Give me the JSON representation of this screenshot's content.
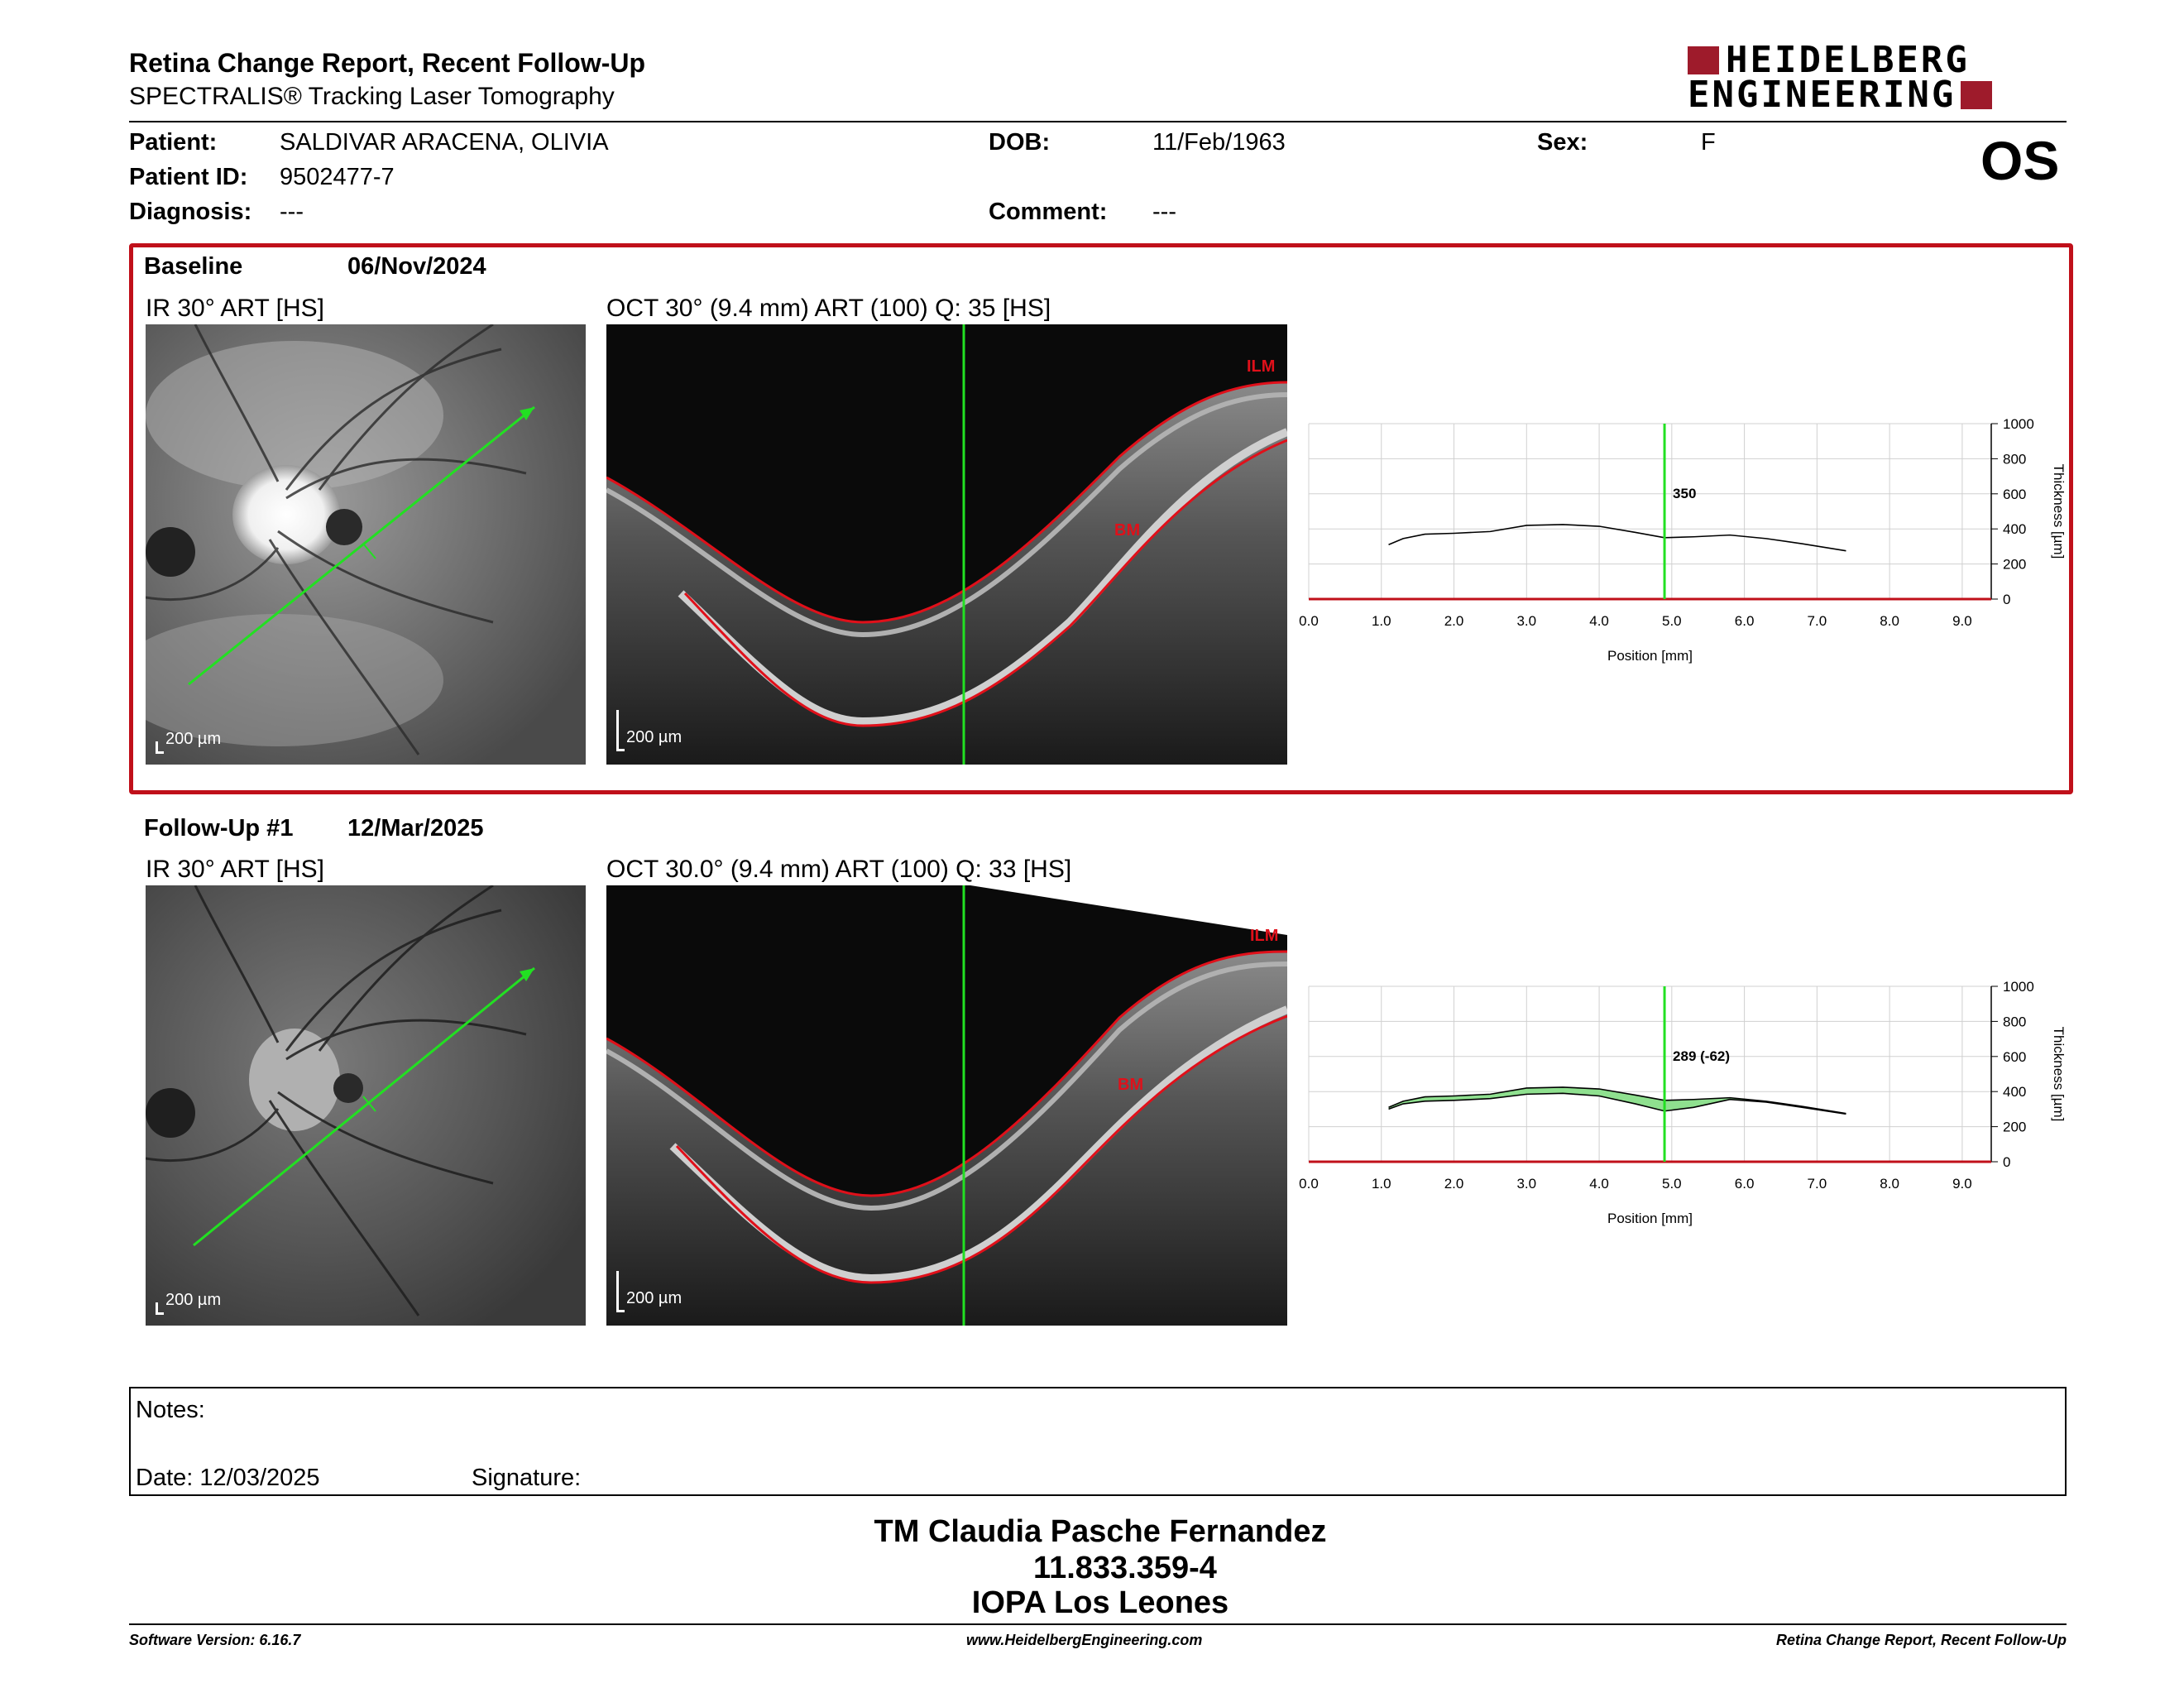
{
  "header": {
    "title": "Retina Change Report, Recent Follow-Up",
    "subtitle": "SPECTRALIS® Tracking Laser Tomography",
    "logo_line1": "HEIDELBERG",
    "logo_line2": "ENGINEERING",
    "brand_color": "#9e1b2b",
    "eye": "OS"
  },
  "patient": {
    "name_label": "Patient:",
    "name": "SALDIVAR ARACENA, OLIVIA",
    "id_label": "Patient ID:",
    "id": "9502477-7",
    "diagnosis_label": "Diagnosis:",
    "diagnosis": "---",
    "dob_label": "DOB:",
    "dob": "11/Feb/1963",
    "comment_label": "Comment:",
    "comment": "---",
    "sex_label": "Sex:",
    "sex": "F"
  },
  "baseline": {
    "label": "Baseline",
    "date": "06/Nov/2024",
    "ir_title": "IR 30° ART [HS]",
    "oct_title": "OCT 30° (9.4 mm) ART (100) Q: 35 [HS]",
    "scale": "200 µm",
    "ilm": "ILM",
    "bm": "BM",
    "highlight_color": "#c0101a"
  },
  "followup": {
    "label": "Follow-Up #1",
    "date": "12/Mar/2025",
    "ir_title": "IR 30° ART [HS]",
    "oct_title": "OCT 30.0° (9.4 mm) ART (100) Q: 33 [HS]",
    "scale": "200 µm",
    "ilm": "ILM",
    "bm": "BM"
  },
  "chart_data": [
    {
      "type": "line",
      "title": "",
      "xlabel": "Position [mm]",
      "ylabel": "Thickness [µm]",
      "xlim": [
        0,
        9.4
      ],
      "ylim": [
        0,
        1000
      ],
      "x_ticks": [
        "0.0",
        "1.0",
        "2.0",
        "3.0",
        "4.0",
        "5.0",
        "6.0",
        "7.0",
        "8.0",
        "9.0"
      ],
      "y_ticks": [
        "0",
        "200",
        "400",
        "600",
        "800",
        "1000"
      ],
      "grid": true,
      "cursor_x": 4.9,
      "cursor_label": "350",
      "series": [
        {
          "x": [
            1.1,
            1.3,
            1.6,
            2.0,
            2.5,
            3.0,
            3.5,
            4.0,
            4.5,
            4.9,
            5.3,
            5.8,
            6.3,
            6.8,
            7.4
          ],
          "y": [
            310,
            345,
            370,
            375,
            385,
            420,
            425,
            415,
            380,
            350,
            355,
            365,
            345,
            315,
            275
          ]
        }
      ]
    },
    {
      "type": "area",
      "title": "",
      "xlabel": "Position [mm]",
      "ylabel": "Thickness [µm]",
      "xlim": [
        0,
        9.4
      ],
      "ylim": [
        0,
        1000
      ],
      "x_ticks": [
        "0.0",
        "1.0",
        "2.0",
        "3.0",
        "4.0",
        "5.0",
        "6.0",
        "7.0",
        "8.0",
        "9.0"
      ],
      "y_ticks": [
        "0",
        "200",
        "400",
        "600",
        "800",
        "1000"
      ],
      "grid": true,
      "cursor_x": 4.9,
      "cursor_label": "289 (-62)",
      "fill_color": "#8fe08f",
      "series": [
        {
          "x": [
            1.1,
            1.3,
            1.6,
            2.0,
            2.5,
            3.0,
            3.5,
            4.0,
            4.5,
            4.9,
            5.3,
            5.8,
            6.3,
            6.8,
            7.4
          ],
          "y": [
            310,
            345,
            370,
            375,
            385,
            420,
            425,
            415,
            380,
            350,
            355,
            365,
            345,
            315,
            275
          ]
        },
        {
          "x": [
            1.1,
            1.3,
            1.6,
            2.0,
            2.5,
            3.0,
            3.5,
            4.0,
            4.5,
            4.9,
            5.3,
            5.8,
            6.3,
            6.8,
            7.4
          ],
          "y": [
            300,
            330,
            345,
            350,
            360,
            385,
            390,
            375,
            330,
            289,
            310,
            355,
            340,
            310,
            272
          ]
        }
      ]
    }
  ],
  "notes": {
    "notes_label": "Notes:",
    "date_label": "Date: 12/03/2025",
    "signature_label": "Signature:"
  },
  "signatory": {
    "name": "TM Claudia Pasche Fernandez",
    "id": "11.833.359-4",
    "place": "IOPA Los Leones"
  },
  "footer": {
    "version": "Software Version: 6.16.7",
    "url": "www.HeidelbergEngineering.com",
    "report": "Retina Change Report, Recent Follow-Up"
  }
}
